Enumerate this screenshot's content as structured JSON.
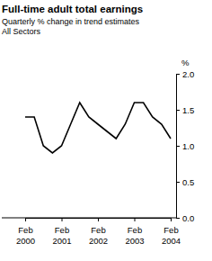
{
  "chart_data": {
    "type": "line",
    "title": "Full-time adult total earnings",
    "subtitle": [
      "Quarterly % change in trend estimates",
      "All Sectors"
    ],
    "y_label": "%",
    "categories": [
      "Feb 2000",
      null,
      null,
      null,
      "Feb 2001",
      null,
      null,
      null,
      "Feb 2002",
      null,
      null,
      null,
      "Feb 2003",
      null,
      null,
      null,
      "Feb 2004"
    ],
    "values": [
      1.4,
      1.4,
      1.0,
      0.9,
      1.0,
      1.3,
      1.6,
      1.4,
      1.3,
      1.2,
      1.1,
      1.3,
      1.6,
      1.6,
      1.4,
      1.3,
      1.1
    ],
    "color": "#000000",
    "ylim": [
      0,
      2
    ],
    "yticks": [
      {
        "value": 0,
        "label": "0.0"
      },
      0.5,
      {
        "value": 1,
        "label": "1.0"
      },
      1.5,
      {
        "value": 2,
        "label": "2.0"
      }
    ]
  }
}
